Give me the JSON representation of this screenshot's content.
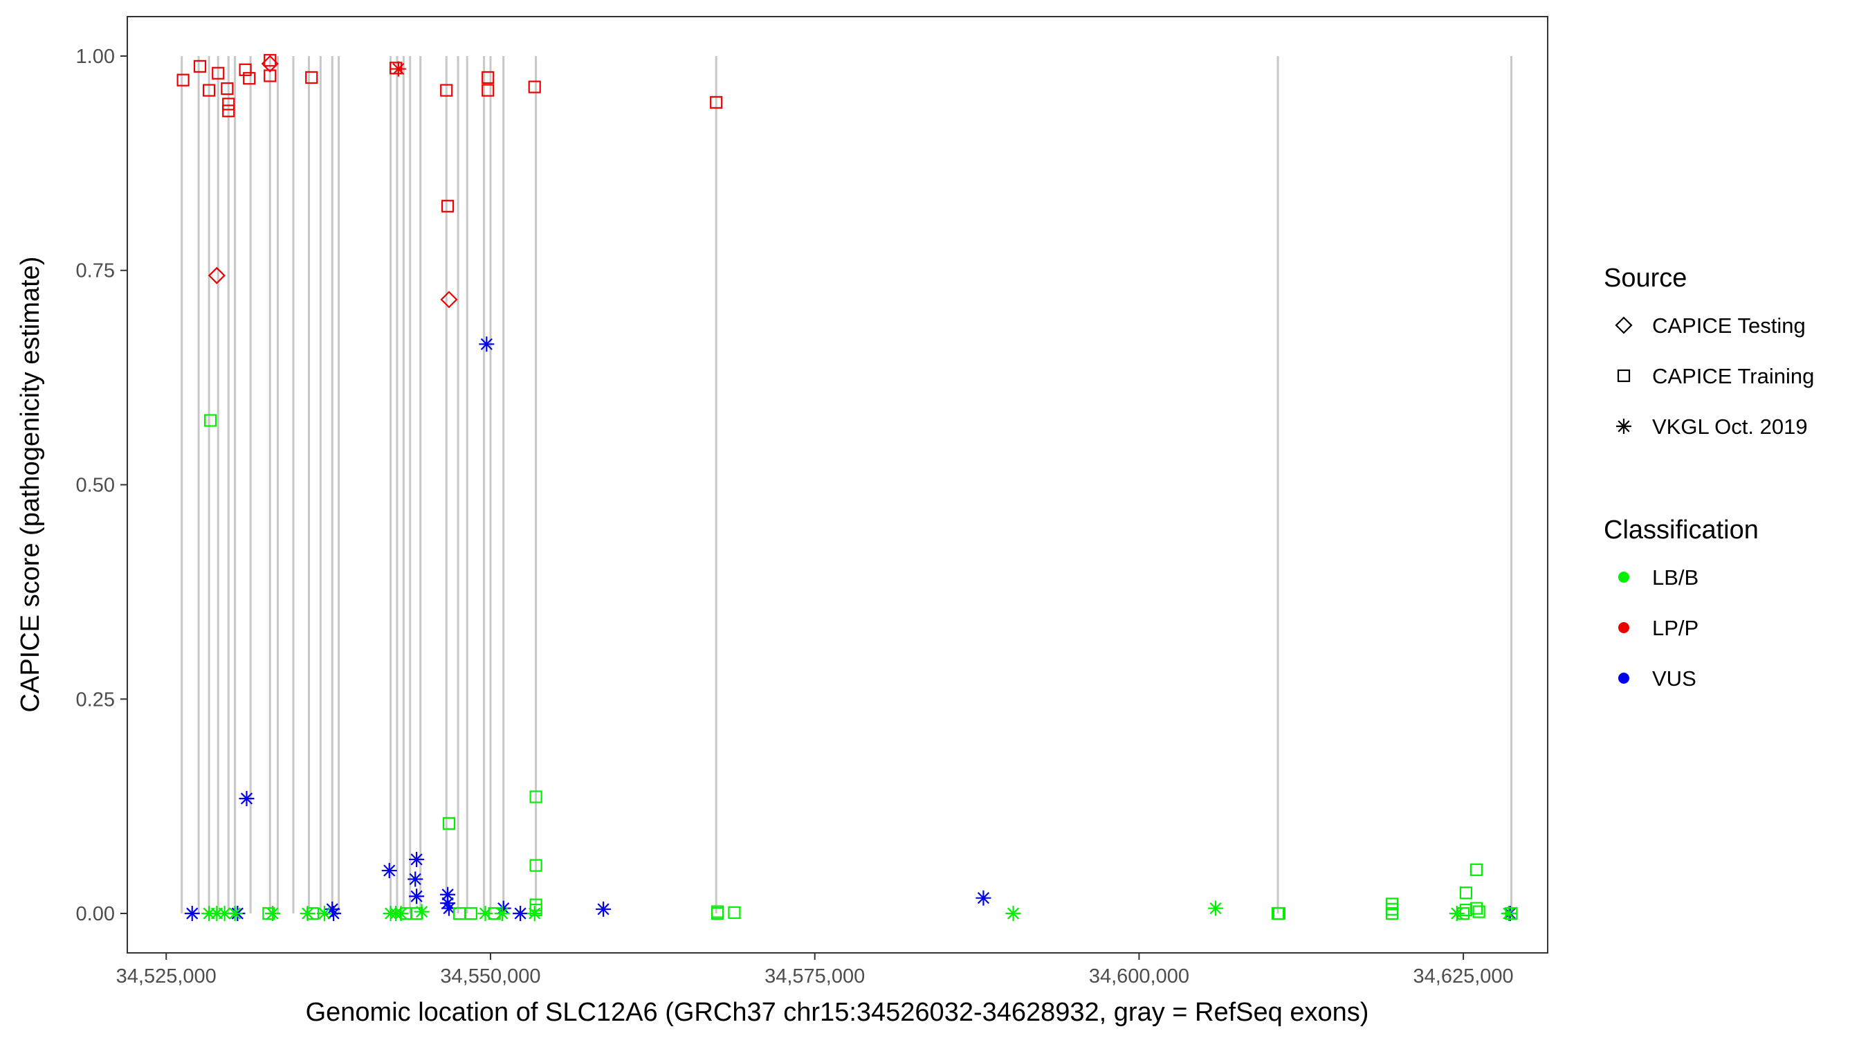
{
  "chart_data": {
    "type": "scatter",
    "xlabel": "Genomic location of SLC12A6 (GRCh37 chr15:34526032-34628932, gray = RefSeq exons)",
    "ylabel": "CAPICE score (pathogenicity estimate)",
    "xlim": [
      34522000,
      34631500
    ],
    "ylim": [
      -0.046,
      1.046
    ],
    "x_ticks": [
      {
        "value": 34525000,
        "label": "34,525,000"
      },
      {
        "value": 34550000,
        "label": "34,550,000"
      },
      {
        "value": 34575000,
        "label": "34,575,000"
      },
      {
        "value": 34600000,
        "label": "34,600,000"
      },
      {
        "value": 34625000,
        "label": "34,625,000"
      }
    ],
    "y_ticks": [
      {
        "value": 0,
        "label": "0.00"
      },
      {
        "value": 0.25,
        "label": "0.25"
      },
      {
        "value": 0.5,
        "label": "0.50"
      },
      {
        "value": 0.75,
        "label": "0.75"
      },
      {
        "value": 1.0,
        "label": "1.00"
      }
    ],
    "grid": false,
    "exons": [
      34526200,
      34527500,
      34528300,
      34529000,
      34529800,
      34530300,
      34531500,
      34533000,
      34533600,
      34534800,
      34536000,
      34536900,
      34537800,
      34538300,
      34542300,
      34542800,
      34543300,
      34543800,
      34544600,
      34546600,
      34547500,
      34548200,
      34549500,
      34550000,
      34551000,
      34553500,
      34567400,
      34610700,
      34628700
    ],
    "legend": {
      "position": "right",
      "source_title": "Source",
      "source_items": [
        {
          "label": "CAPICE Testing",
          "shape": "diamond"
        },
        {
          "label": "CAPICE Training",
          "shape": "square"
        },
        {
          "label": "VKGL Oct. 2019",
          "shape": "asterisk"
        }
      ],
      "class_title": "Classification",
      "class_items": [
        {
          "label": "LB/B",
          "color": "#00ee00"
        },
        {
          "label": "LP/P",
          "color": "#ee0000"
        },
        {
          "label": "VUS",
          "color": "#0000ee"
        }
      ]
    },
    "series": [
      {
        "name": "LP/P",
        "color": "#ee0000",
        "points": [
          {
            "x": 34526300,
            "y": 0.972,
            "shape": "square"
          },
          {
            "x": 34527600,
            "y": 0.988,
            "shape": "square"
          },
          {
            "x": 34528300,
            "y": 0.96,
            "shape": "square"
          },
          {
            "x": 34529000,
            "y": 0.98,
            "shape": "square"
          },
          {
            "x": 34529700,
            "y": 0.962,
            "shape": "square"
          },
          {
            "x": 34529800,
            "y": 0.944,
            "shape": "square"
          },
          {
            "x": 34529800,
            "y": 0.936,
            "shape": "square"
          },
          {
            "x": 34531100,
            "y": 0.984,
            "shape": "square"
          },
          {
            "x": 34531400,
            "y": 0.974,
            "shape": "square"
          },
          {
            "x": 34533000,
            "y": 0.995,
            "shape": "square"
          },
          {
            "x": 34533000,
            "y": 0.991,
            "shape": "diamond"
          },
          {
            "x": 34533000,
            "y": 0.977,
            "shape": "square"
          },
          {
            "x": 34536200,
            "y": 0.975,
            "shape": "square"
          },
          {
            "x": 34542700,
            "y": 0.986,
            "shape": "square"
          },
          {
            "x": 34542900,
            "y": 0.985,
            "shape": "asterisk"
          },
          {
            "x": 34546600,
            "y": 0.96,
            "shape": "square"
          },
          {
            "x": 34549800,
            "y": 0.975,
            "shape": "square"
          },
          {
            "x": 34549800,
            "y": 0.96,
            "shape": "square"
          },
          {
            "x": 34553400,
            "y": 0.964,
            "shape": "square"
          },
          {
            "x": 34567400,
            "y": 0.946,
            "shape": "square"
          },
          {
            "x": 34528900,
            "y": 0.744,
            "shape": "diamond"
          },
          {
            "x": 34546700,
            "y": 0.825,
            "shape": "square"
          },
          {
            "x": 34546800,
            "y": 0.716,
            "shape": "diamond"
          }
        ]
      },
      {
        "name": "VUS",
        "color": "#0000ee",
        "points": [
          {
            "x": 34549700,
            "y": 0.664,
            "shape": "asterisk"
          },
          {
            "x": 34531200,
            "y": 0.134,
            "shape": "asterisk"
          },
          {
            "x": 34542200,
            "y": 0.05,
            "shape": "asterisk"
          },
          {
            "x": 34544300,
            "y": 0.063,
            "shape": "asterisk"
          },
          {
            "x": 34544200,
            "y": 0.04,
            "shape": "asterisk"
          },
          {
            "x": 34544300,
            "y": 0.02,
            "shape": "asterisk"
          },
          {
            "x": 34546700,
            "y": 0.022,
            "shape": "asterisk"
          },
          {
            "x": 34546700,
            "y": 0.012,
            "shape": "asterisk"
          },
          {
            "x": 34546800,
            "y": 0.006,
            "shape": "asterisk"
          },
          {
            "x": 34527000,
            "y": 0.0,
            "shape": "asterisk"
          },
          {
            "x": 34530500,
            "y": 0.0,
            "shape": "asterisk"
          },
          {
            "x": 34537800,
            "y": 0.005,
            "shape": "asterisk"
          },
          {
            "x": 34537900,
            "y": 0.0,
            "shape": "asterisk"
          },
          {
            "x": 34551000,
            "y": 0.006,
            "shape": "asterisk"
          },
          {
            "x": 34552300,
            "y": 0.0,
            "shape": "asterisk"
          },
          {
            "x": 34558700,
            "y": 0.005,
            "shape": "asterisk"
          },
          {
            "x": 34588000,
            "y": 0.018,
            "shape": "asterisk"
          },
          {
            "x": 34628600,
            "y": 0.0,
            "shape": "asterisk"
          }
        ]
      },
      {
        "name": "LB/B",
        "color": "#00ee00",
        "points": [
          {
            "x": 34528400,
            "y": 0.575,
            "shape": "square"
          },
          {
            "x": 34546800,
            "y": 0.105,
            "shape": "square"
          },
          {
            "x": 34553500,
            "y": 0.136,
            "shape": "square"
          },
          {
            "x": 34553500,
            "y": 0.056,
            "shape": "square"
          },
          {
            "x": 34553500,
            "y": 0.01,
            "shape": "square"
          },
          {
            "x": 34553500,
            "y": 0.004,
            "shape": "square"
          },
          {
            "x": 34628700,
            "y": 0.0,
            "shape": "square"
          },
          {
            "x": 34628500,
            "y": 0.0,
            "shape": "asterisk"
          },
          {
            "x": 34625200,
            "y": 0.024,
            "shape": "square"
          },
          {
            "x": 34626000,
            "y": 0.051,
            "shape": "square"
          },
          {
            "x": 34626000,
            "y": 0.006,
            "shape": "square"
          },
          {
            "x": 34626200,
            "y": 0.002,
            "shape": "square"
          },
          {
            "x": 34625200,
            "y": 0.004,
            "shape": "square"
          },
          {
            "x": 34624500,
            "y": 0.0,
            "shape": "asterisk"
          },
          {
            "x": 34625000,
            "y": 0.0,
            "shape": "square"
          },
          {
            "x": 34619500,
            "y": 0.011,
            "shape": "square"
          },
          {
            "x": 34619500,
            "y": 0.005,
            "shape": "square"
          },
          {
            "x": 34619500,
            "y": 0.0,
            "shape": "square"
          },
          {
            "x": 34610700,
            "y": 0.0,
            "shape": "square"
          },
          {
            "x": 34610800,
            "y": 0.0,
            "shape": "square"
          },
          {
            "x": 34605900,
            "y": 0.006,
            "shape": "asterisk"
          },
          {
            "x": 34590300,
            "y": 0.0,
            "shape": "asterisk"
          },
          {
            "x": 34567500,
            "y": 0.002,
            "shape": "square"
          },
          {
            "x": 34567500,
            "y": 0.0,
            "shape": "square"
          },
          {
            "x": 34568800,
            "y": 0.001,
            "shape": "square"
          },
          {
            "x": 34528300,
            "y": 0.0,
            "shape": "asterisk"
          },
          {
            "x": 34528900,
            "y": 0.0,
            "shape": "asterisk"
          },
          {
            "x": 34529500,
            "y": 0.0,
            "shape": "asterisk"
          },
          {
            "x": 34530300,
            "y": 0.0,
            "shape": "asterisk"
          },
          {
            "x": 34532900,
            "y": 0.0,
            "shape": "square"
          },
          {
            "x": 34533200,
            "y": 0.0,
            "shape": "asterisk"
          },
          {
            "x": 34535900,
            "y": 0.0,
            "shape": "asterisk"
          },
          {
            "x": 34536300,
            "y": 0.0,
            "shape": "square"
          },
          {
            "x": 34537200,
            "y": 0.0,
            "shape": "asterisk"
          },
          {
            "x": 34542300,
            "y": 0.0,
            "shape": "asterisk"
          },
          {
            "x": 34542700,
            "y": 0.0,
            "shape": "asterisk"
          },
          {
            "x": 34543100,
            "y": 0.0,
            "shape": "asterisk"
          },
          {
            "x": 34543500,
            "y": 0.0,
            "shape": "square"
          },
          {
            "x": 34544300,
            "y": 0.0,
            "shape": "square"
          },
          {
            "x": 34544700,
            "y": 0.002,
            "shape": "asterisk"
          },
          {
            "x": 34547600,
            "y": 0.0,
            "shape": "square"
          },
          {
            "x": 34548500,
            "y": 0.0,
            "shape": "square"
          },
          {
            "x": 34549600,
            "y": 0.0,
            "shape": "asterisk"
          },
          {
            "x": 34550300,
            "y": 0.0,
            "shape": "square"
          },
          {
            "x": 34550900,
            "y": 0.0,
            "shape": "asterisk"
          },
          {
            "x": 34553400,
            "y": 0.0,
            "shape": "asterisk"
          }
        ]
      }
    ]
  }
}
